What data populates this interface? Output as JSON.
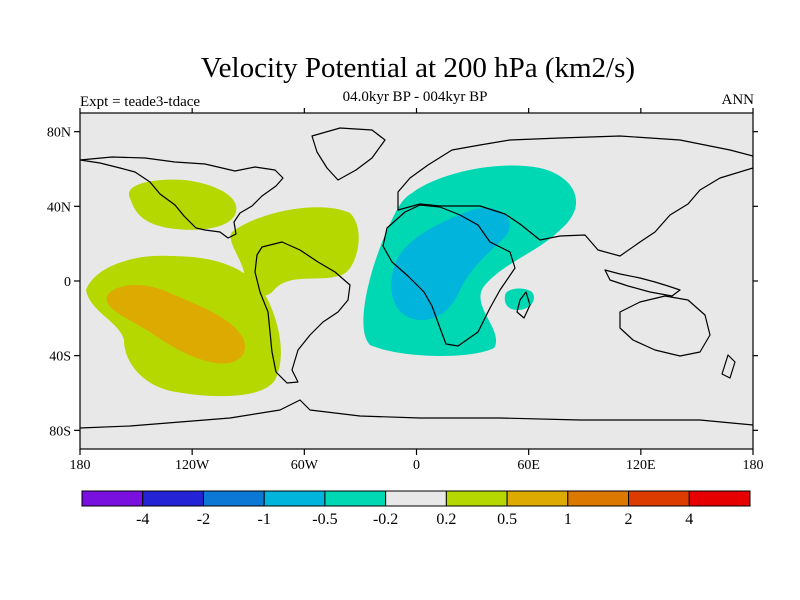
{
  "title": "Velocity Potential at 200 hPa (km2/s)",
  "subtitle": "04.0kyr BP - 004kyr BP",
  "left_label": "Expt = teade3-tdace",
  "right_label": "ANN",
  "axes": {
    "x_ticks": [
      "180",
      "120W",
      "60W",
      "0",
      "60E",
      "120E",
      "180"
    ],
    "y_ticks": [
      "80N",
      "40N",
      "0",
      "40S",
      "80S"
    ]
  },
  "colorbar": {
    "colors": [
      "#7a10e0",
      "#2424d6",
      "#0a78d4",
      "#00b4dc",
      "#00d8b4",
      "#e8e8e8",
      "#b4d800",
      "#dcaa00",
      "#dc7800",
      "#dc3c00",
      "#e60000"
    ],
    "labels": [
      "-4",
      "-2",
      "-1",
      "-0.5",
      "-0.2",
      "0.2",
      "0.5",
      "1",
      "2",
      "4"
    ]
  },
  "colors": {
    "ocean_background": "#e8e8e8",
    "pos_light": "#b4d800",
    "pos_medium": "#dcaa00",
    "neg_light": "#00d8b4",
    "neg_medium": "#00b4dc",
    "coast": "#000000"
  }
}
